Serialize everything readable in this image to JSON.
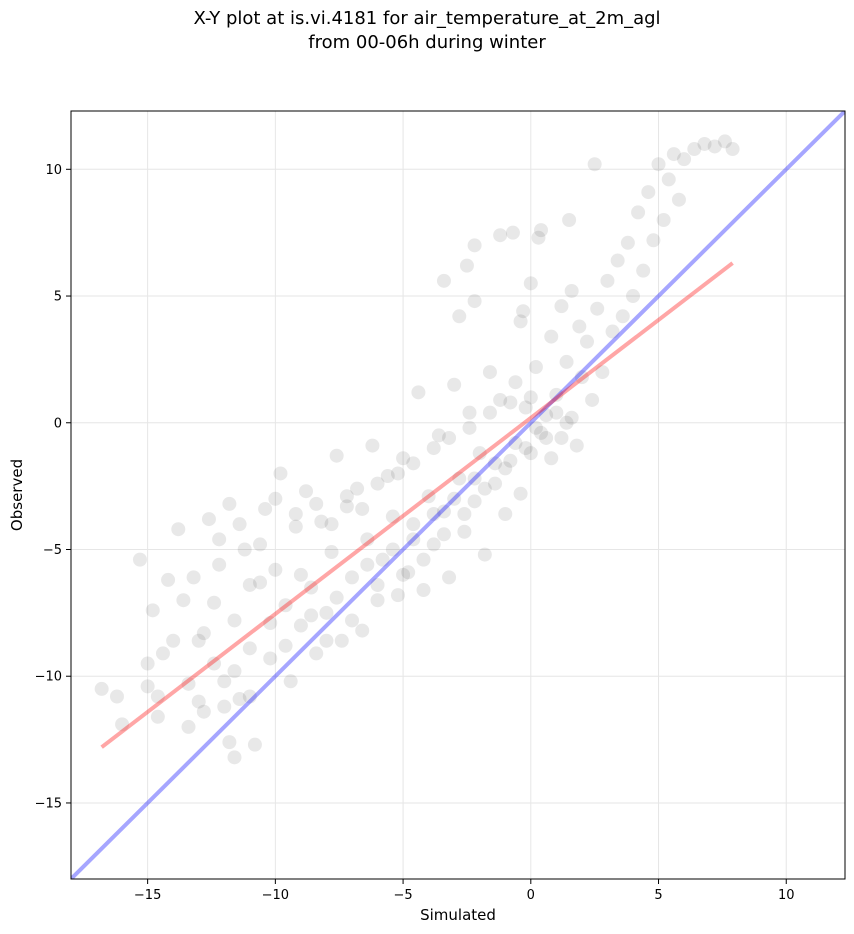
{
  "chart_data": {
    "type": "scatter",
    "title_lines": [
      "X-Y plot at is.vi.4181 for air_temperature_at_2m_agl",
      "from 00-06h during winter"
    ],
    "xlabel": "Simulated",
    "ylabel": "Observed",
    "xlim": [
      -18.0,
      12.3
    ],
    "ylim": [
      -18.0,
      12.3
    ],
    "xticks": [
      -15,
      -10,
      -5,
      0,
      5,
      10
    ],
    "yticks": [
      -15,
      -10,
      -5,
      0,
      5,
      10
    ],
    "xtick_labels": [
      "−15",
      "−10",
      "−5",
      "0",
      "5",
      "10"
    ],
    "ytick_labels": [
      "−15",
      "−10",
      "−5",
      "0",
      "5",
      "10"
    ],
    "grid": true,
    "legend": "none",
    "point_color": "#000000",
    "point_alpha": 0.09,
    "fit_line": {
      "color": "#ff0000",
      "alpha": 0.35,
      "x": [
        -16.8,
        7.9
      ],
      "y": [
        -12.8,
        6.3
      ]
    },
    "identity_line": {
      "color": "#0000ff",
      "alpha": 0.35,
      "x": [
        -18.0,
        12.3
      ],
      "y": [
        -18.0,
        12.3
      ]
    },
    "points": [
      [
        -16.8,
        -10.5
      ],
      [
        -16.2,
        -10.8
      ],
      [
        -16.0,
        -11.9
      ],
      [
        -15.3,
        -5.4
      ],
      [
        -15.0,
        -9.5
      ],
      [
        -14.8,
        -7.4
      ],
      [
        -14.6,
        -10.8
      ],
      [
        -14.4,
        -9.1
      ],
      [
        -14.2,
        -6.2
      ],
      [
        -14.0,
        -8.6
      ],
      [
        -13.8,
        -4.2
      ],
      [
        -13.6,
        -7.0
      ],
      [
        -13.4,
        -10.3
      ],
      [
        -13.2,
        -6.1
      ],
      [
        -13.0,
        -11.0
      ],
      [
        -12.8,
        -8.3
      ],
      [
        -12.6,
        -3.8
      ],
      [
        -12.4,
        -9.5
      ],
      [
        -12.2,
        -5.6
      ],
      [
        -12.0,
        -11.2
      ],
      [
        -11.8,
        -3.2
      ],
      [
        -11.6,
        -7.8
      ],
      [
        -11.4,
        -10.9
      ],
      [
        -11.2,
        -5.0
      ],
      [
        -11.0,
        -8.9
      ],
      [
        -10.8,
        -12.7
      ],
      [
        -10.6,
        -6.3
      ],
      [
        -10.4,
        -3.4
      ],
      [
        -10.2,
        -9.3
      ],
      [
        -10.0,
        -5.8
      ],
      [
        -9.8,
        -2.0
      ],
      [
        -9.6,
        -7.2
      ],
      [
        -9.4,
        -10.2
      ],
      [
        -9.2,
        -4.1
      ],
      [
        -9.0,
        -8.0
      ],
      [
        -8.8,
        -2.7
      ],
      [
        -8.6,
        -6.5
      ],
      [
        -8.4,
        -9.1
      ],
      [
        -8.2,
        -3.9
      ],
      [
        -8.0,
        -7.5
      ],
      [
        -7.8,
        -5.1
      ],
      [
        -7.6,
        -1.3
      ],
      [
        -7.4,
        -8.6
      ],
      [
        -7.2,
        -3.3
      ],
      [
        -7.0,
        -6.1
      ],
      [
        -6.8,
        -2.6
      ],
      [
        -6.6,
        -8.2
      ],
      [
        -6.4,
        -4.6
      ],
      [
        -6.2,
        -0.9
      ],
      [
        -6.0,
        -7.0
      ],
      [
        -5.8,
        -5.4
      ],
      [
        -5.6,
        -2.1
      ],
      [
        -5.4,
        -3.7
      ],
      [
        -5.2,
        -6.8
      ],
      [
        -5.0,
        -1.4
      ],
      [
        -4.8,
        -5.9
      ],
      [
        -4.6,
        -4.0
      ],
      [
        -4.4,
        1.2
      ],
      [
        -4.2,
        -6.6
      ],
      [
        -4.0,
        -2.9
      ],
      [
        -3.8,
        -4.8
      ],
      [
        -3.6,
        -0.5
      ],
      [
        -3.4,
        -3.5
      ],
      [
        -3.2,
        -6.1
      ],
      [
        -3.0,
        1.5
      ],
      [
        -2.8,
        -2.2
      ],
      [
        -2.6,
        -4.3
      ],
      [
        -2.4,
        0.4
      ],
      [
        -2.2,
        -3.1
      ],
      [
        -2.0,
        -1.2
      ],
      [
        -1.8,
        -5.2
      ],
      [
        -1.6,
        2.0
      ],
      [
        -1.4,
        -2.4
      ],
      [
        -1.2,
        0.9
      ],
      [
        -1.0,
        -3.6
      ],
      [
        -0.8,
        -1.5
      ],
      [
        -0.6,
        1.6
      ],
      [
        -0.4,
        -2.8
      ],
      [
        -0.2,
        0.6
      ],
      [
        0.0,
        -1.2
      ],
      [
        0.2,
        2.2
      ],
      [
        0.4,
        -0.4
      ],
      [
        0.6,
        0.3
      ],
      [
        0.8,
        -1.4
      ],
      [
        1.0,
        1.1
      ],
      [
        1.2,
        -0.6
      ],
      [
        1.4,
        2.4
      ],
      [
        1.6,
        0.2
      ],
      [
        1.8,
        -0.9
      ],
      [
        2.0,
        1.8
      ],
      [
        2.2,
        3.2
      ],
      [
        2.4,
        0.9
      ],
      [
        2.6,
        4.5
      ],
      [
        2.8,
        2.0
      ],
      [
        3.0,
        5.6
      ],
      [
        3.2,
        3.6
      ],
      [
        3.4,
        6.4
      ],
      [
        3.6,
        4.2
      ],
      [
        3.8,
        7.1
      ],
      [
        4.0,
        5.0
      ],
      [
        4.2,
        8.3
      ],
      [
        4.4,
        6.0
      ],
      [
        4.6,
        9.1
      ],
      [
        4.8,
        7.2
      ],
      [
        5.0,
        10.2
      ],
      [
        5.2,
        8.0
      ],
      [
        5.4,
        9.6
      ],
      [
        5.6,
        10.6
      ],
      [
        5.8,
        8.8
      ],
      [
        6.0,
        10.4
      ],
      [
        6.4,
        10.8
      ],
      [
        6.8,
        11.0
      ],
      [
        7.2,
        10.9
      ],
      [
        7.6,
        11.1
      ],
      [
        7.9,
        10.8
      ],
      [
        -13.0,
        -8.6
      ],
      [
        -12.4,
        -7.1
      ],
      [
        -11.6,
        -9.8
      ],
      [
        -11.0,
        -6.4
      ],
      [
        -10.2,
        -7.9
      ],
      [
        -9.6,
        -8.8
      ],
      [
        -9.0,
        -6.0
      ],
      [
        -8.6,
        -7.6
      ],
      [
        -8.0,
        -8.6
      ],
      [
        -7.6,
        -6.9
      ],
      [
        -7.0,
        -7.8
      ],
      [
        -6.4,
        -5.6
      ],
      [
        -6.0,
        -6.4
      ],
      [
        -5.4,
        -5.0
      ],
      [
        -5.0,
        -6.0
      ],
      [
        -4.6,
        -4.6
      ],
      [
        -4.2,
        -5.4
      ],
      [
        -3.8,
        -3.6
      ],
      [
        -3.4,
        -4.4
      ],
      [
        -3.0,
        -3.0
      ],
      [
        -2.6,
        -3.6
      ],
      [
        -2.2,
        -2.2
      ],
      [
        -1.8,
        -2.6
      ],
      [
        -1.4,
        -1.6
      ],
      [
        -1.0,
        -1.8
      ],
      [
        -0.6,
        -0.8
      ],
      [
        -0.2,
        -1.0
      ],
      [
        0.2,
        -0.2
      ],
      [
        0.6,
        -0.6
      ],
      [
        1.0,
        0.4
      ],
      [
        1.4,
        0.0
      ],
      [
        -9.2,
        -3.6
      ],
      [
        -8.4,
        -3.2
      ],
      [
        -7.8,
        -4.0
      ],
      [
        -7.2,
        -2.9
      ],
      [
        -6.6,
        -3.4
      ],
      [
        -6.0,
        -2.4
      ],
      [
        -5.2,
        -2.0
      ],
      [
        -4.6,
        -1.6
      ],
      [
        -3.8,
        -1.0
      ],
      [
        -3.2,
        -0.6
      ],
      [
        -2.4,
        -0.2
      ],
      [
        -1.6,
        0.4
      ],
      [
        -0.8,
        0.8
      ],
      [
        0.0,
        1.0
      ],
      [
        -3.4,
        5.6
      ],
      [
        -2.8,
        4.2
      ],
      [
        -2.5,
        6.2
      ],
      [
        -2.2,
        4.8
      ],
      [
        -2.2,
        7.0
      ],
      [
        -1.2,
        7.4
      ],
      [
        -0.7,
        7.5
      ],
      [
        -0.4,
        4.0
      ],
      [
        -0.3,
        4.4
      ],
      [
        0.0,
        5.5
      ],
      [
        0.3,
        7.3
      ],
      [
        0.4,
        7.6
      ],
      [
        1.5,
        8.0
      ],
      [
        2.5,
        10.2
      ],
      [
        1.2,
        4.6
      ],
      [
        1.6,
        5.2
      ],
      [
        1.9,
        3.8
      ],
      [
        0.8,
        3.4
      ],
      [
        -12.2,
        -4.6
      ],
      [
        -11.4,
        -4.0
      ],
      [
        -10.6,
        -4.8
      ],
      [
        -10.0,
        -3.0
      ],
      [
        -11.8,
        -12.6
      ],
      [
        -11.6,
        -13.2
      ],
      [
        -12.8,
        -11.4
      ],
      [
        -13.4,
        -12.0
      ],
      [
        -14.6,
        -11.6
      ],
      [
        -15.0,
        -10.4
      ],
      [
        -12.0,
        -10.2
      ],
      [
        -11.0,
        -10.8
      ]
    ]
  }
}
